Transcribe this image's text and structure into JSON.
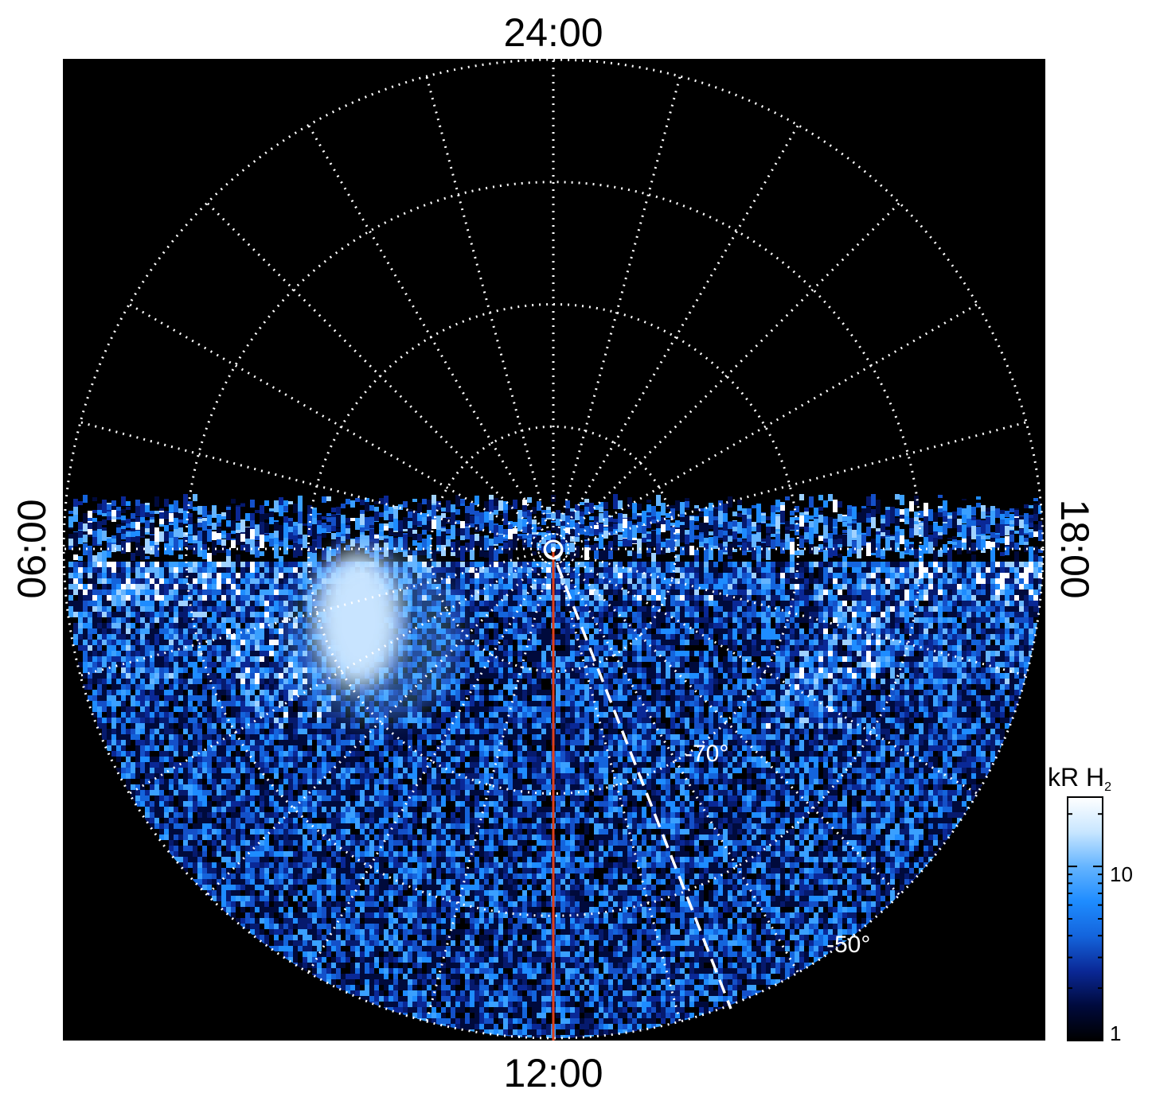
{
  "local_time_labels": {
    "top": "24:00",
    "bottom": "12:00",
    "left": "06:00",
    "right": "18:00"
  },
  "latitude_labels": [
    "-70°",
    "-50°"
  ],
  "colorbar": {
    "title_main": "kR H",
    "title_sub": "2",
    "ticks": [
      {
        "label": "10",
        "value": 10
      },
      {
        "label": "1",
        "value": 1
      }
    ],
    "range": [
      1,
      25
    ],
    "scale": "log",
    "colors": [
      "#000000",
      "#000a3c",
      "#0a2896",
      "#1464dc",
      "#1e8cff",
      "#64b4ff",
      "#c8e6ff",
      "#ffffff"
    ]
  },
  "colors": {
    "background": "#000000",
    "grid": "#ffffff",
    "noon_meridian": "#e0401a",
    "emission": "#1e8cff"
  },
  "grid": {
    "rings": 4,
    "meridians": 24,
    "style": "dotted"
  },
  "markers": {
    "dashed_line": "white dashed line from pole toward lower right"
  }
}
